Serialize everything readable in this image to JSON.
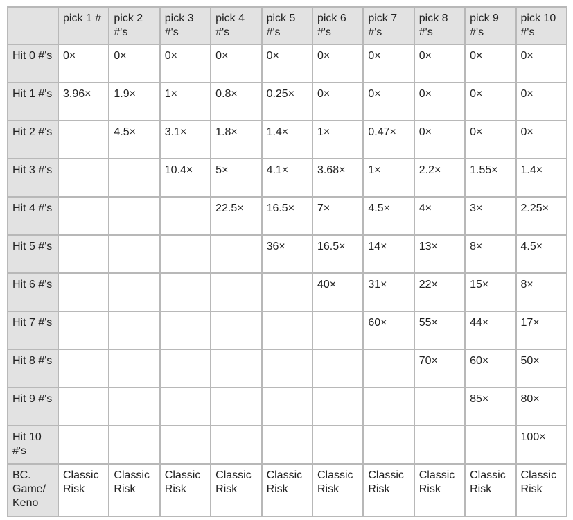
{
  "table": {
    "corner": "",
    "columns": [
      "pick 1 #",
      "pick 2 #'s",
      "pick 3 #'s",
      "pick 4 #'s",
      "pick 5 #'s",
      "pick 6 #'s",
      "pick 7 #'s",
      "pick 8 #'s",
      "pick 9 #'s",
      "pick 10 #'s"
    ],
    "rows": [
      {
        "label": "Hit 0 #'s",
        "cells": [
          "0×",
          "0×",
          "0×",
          "0×",
          "0×",
          "0×",
          "0×",
          "0×",
          "0×",
          "0×"
        ]
      },
      {
        "label": "Hit 1 #'s",
        "cells": [
          "3.96×",
          "1.9×",
          "1×",
          "0.8×",
          "0.25×",
          "0×",
          "0×",
          "0×",
          "0×",
          "0×"
        ]
      },
      {
        "label": "Hit 2 #'s",
        "cells": [
          "",
          "4.5×",
          "3.1×",
          "1.8×",
          "1.4×",
          "1×",
          "0.47×",
          "0×",
          "0×",
          "0×"
        ]
      },
      {
        "label": "Hit 3 #'s",
        "cells": [
          "",
          "",
          "10.4×",
          "5×",
          "4.1×",
          "3.68×",
          "1×",
          "2.2×",
          "1.55×",
          "1.4×"
        ]
      },
      {
        "label": "Hit 4 #'s",
        "cells": [
          "",
          "",
          "",
          "22.5×",
          "16.5×",
          "7×",
          "4.5×",
          "4×",
          "3×",
          "2.25×"
        ]
      },
      {
        "label": "Hit 5 #'s",
        "cells": [
          "",
          "",
          "",
          "",
          "36×",
          "16.5×",
          "14×",
          "13×",
          "8×",
          "4.5×"
        ]
      },
      {
        "label": "Hit 6 #'s",
        "cells": [
          "",
          "",
          "",
          "",
          "",
          "40×",
          "31×",
          "22×",
          "15×",
          "8×"
        ]
      },
      {
        "label": "Hit 7 #'s",
        "cells": [
          "",
          "",
          "",
          "",
          "",
          "",
          "60×",
          "55×",
          "44×",
          "17×"
        ]
      },
      {
        "label": "Hit 8 #'s",
        "cells": [
          "",
          "",
          "",
          "",
          "",
          "",
          "",
          "70×",
          "60×",
          "50×"
        ]
      },
      {
        "label": "Hit 9 #'s",
        "cells": [
          "",
          "",
          "",
          "",
          "",
          "",
          "",
          "",
          "85×",
          "80×"
        ]
      },
      {
        "label": "Hit 10 #'s",
        "cells": [
          "",
          "",
          "",
          "",
          "",
          "",
          "",
          "",
          "",
          "100×"
        ]
      },
      {
        "label": "BC. Game/ Keno",
        "cells": [
          "Classic Risk",
          "Classic Risk",
          "Classic Risk",
          "Classic Risk",
          "Classic Risk",
          "Classic Risk",
          "Classic Risk",
          "Classic Risk",
          "Classic Risk",
          "Classic Risk"
        ]
      }
    ]
  }
}
